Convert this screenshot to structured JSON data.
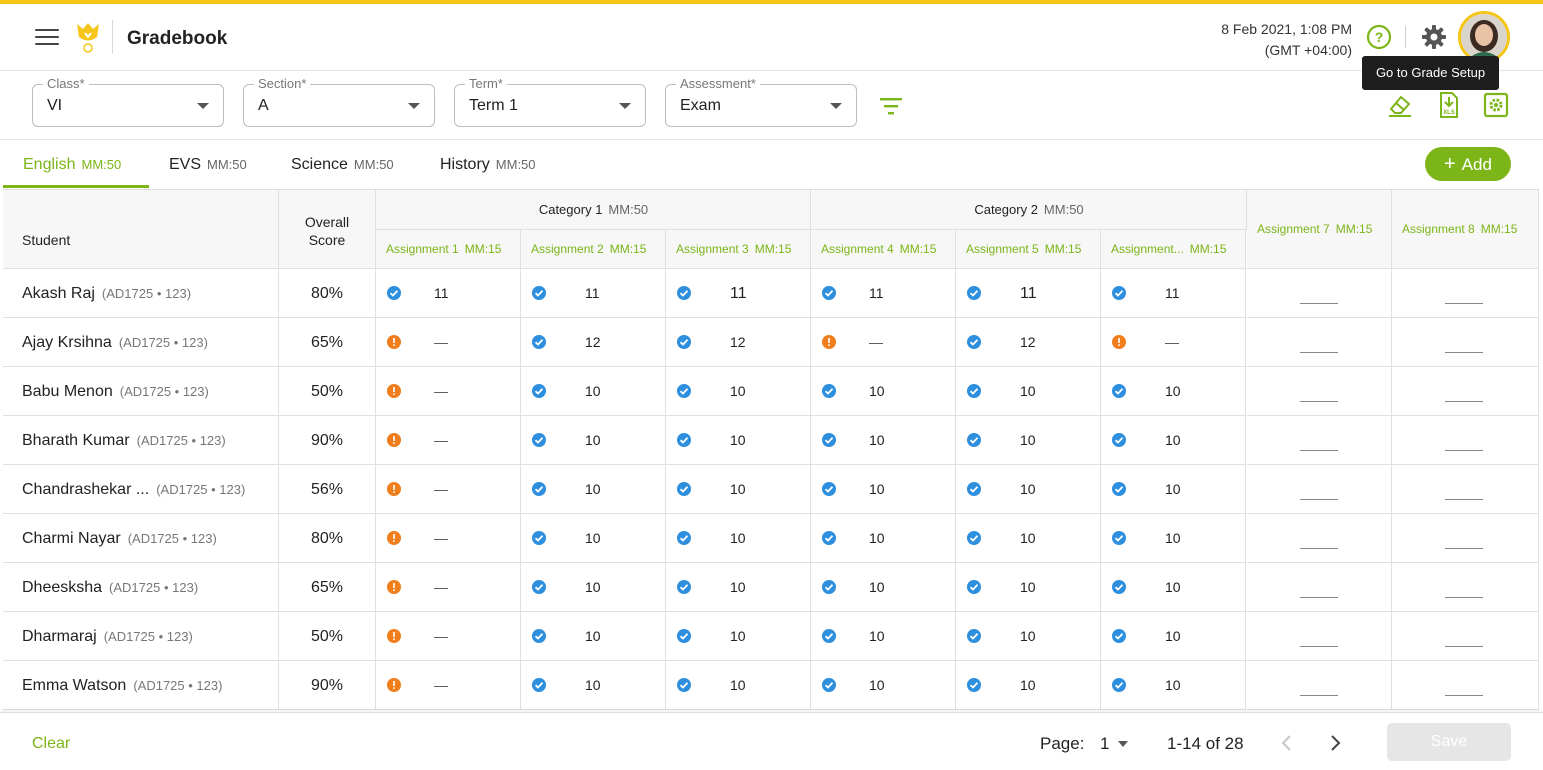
{
  "header": {
    "title": "Gradebook",
    "date": "8 Feb 2021, 1:08 PM",
    "timezone": "(GMT +04:00)",
    "tooltip": "Go to Grade Setup"
  },
  "filters": {
    "class": {
      "label": "Class*",
      "value": "VI"
    },
    "section": {
      "label": "Section*",
      "value": "A"
    },
    "term": {
      "label": "Term*",
      "value": "Term 1"
    },
    "assessment": {
      "label": "Assessment*",
      "value": "Exam"
    }
  },
  "tabs": [
    {
      "label": "English",
      "mm": "MM:50"
    },
    {
      "label": "EVS",
      "mm": "MM:50"
    },
    {
      "label": "Science",
      "mm": "MM:50"
    },
    {
      "label": "History",
      "mm": "MM:50"
    }
  ],
  "add_label": "Add",
  "table": {
    "student_header": "Student",
    "overall_header_1": "Overall",
    "overall_header_2": "Score",
    "categories": [
      {
        "label": "Category 1",
        "mm": "MM:50"
      },
      {
        "label": "Category 2",
        "mm": "MM:50"
      }
    ],
    "assignments": [
      {
        "label": "Assignment 1",
        "mm": "MM:15"
      },
      {
        "label": "Assignment 2",
        "mm": "MM:15"
      },
      {
        "label": "Assignment 3",
        "mm": "MM:15"
      },
      {
        "label": "Assignment 4",
        "mm": "MM:15"
      },
      {
        "label": "Assignment 5",
        "mm": "MM:15"
      },
      {
        "label": "Assignment...",
        "mm": "MM:15"
      },
      {
        "label": "Assignment 7",
        "mm": "MM:15"
      },
      {
        "label": "Assignment 8",
        "mm": "MM:15"
      }
    ],
    "rows": [
      {
        "name": "Akash Raj",
        "id": "(AD1725 • 123)",
        "score": "80%",
        "marks": [
          [
            "ok",
            "11"
          ],
          [
            "ok",
            "11"
          ],
          [
            "ok",
            "11"
          ],
          [
            "ok",
            "11"
          ],
          [
            "ok",
            "11"
          ],
          [
            "ok",
            "11"
          ]
        ]
      },
      {
        "name": "Ajay Krsihna",
        "id": "(AD1725 • 123)",
        "score": "65%",
        "marks": [
          [
            "warn",
            "—"
          ],
          [
            "ok",
            "12"
          ],
          [
            "ok",
            "12"
          ],
          [
            "warn",
            "—"
          ],
          [
            "ok",
            "12"
          ],
          [
            "warn",
            "—"
          ]
        ]
      },
      {
        "name": "Babu Menon",
        "id": "(AD1725 • 123)",
        "score": "50%",
        "marks": [
          [
            "warn",
            "—"
          ],
          [
            "ok",
            "10"
          ],
          [
            "ok",
            "10"
          ],
          [
            "ok",
            "10"
          ],
          [
            "ok",
            "10"
          ],
          [
            "ok",
            "10"
          ]
        ]
      },
      {
        "name": "Bharath Kumar",
        "id": "(AD1725 • 123)",
        "score": "90%",
        "marks": [
          [
            "warn",
            "—"
          ],
          [
            "ok",
            "10"
          ],
          [
            "ok",
            "10"
          ],
          [
            "ok",
            "10"
          ],
          [
            "ok",
            "10"
          ],
          [
            "ok",
            "10"
          ]
        ]
      },
      {
        "name": "Chandrashekar ...",
        "id": "(AD1725 • 123)",
        "score": "56%",
        "marks": [
          [
            "warn",
            "—"
          ],
          [
            "ok",
            "10"
          ],
          [
            "ok",
            "10"
          ],
          [
            "ok",
            "10"
          ],
          [
            "ok",
            "10"
          ],
          [
            "ok",
            "10"
          ]
        ]
      },
      {
        "name": "Charmi Nayar",
        "id": "(AD1725 • 123)",
        "score": "80%",
        "marks": [
          [
            "warn",
            "—"
          ],
          [
            "ok",
            "10"
          ],
          [
            "ok",
            "10"
          ],
          [
            "ok",
            "10"
          ],
          [
            "ok",
            "10"
          ],
          [
            "ok",
            "10"
          ]
        ]
      },
      {
        "name": "Dheesksha",
        "id": "(AD1725 • 123)",
        "score": "65%",
        "marks": [
          [
            "warn",
            "—"
          ],
          [
            "ok",
            "10"
          ],
          [
            "ok",
            "10"
          ],
          [
            "ok",
            "10"
          ],
          [
            "ok",
            "10"
          ],
          [
            "ok",
            "10"
          ]
        ]
      },
      {
        "name": "Dharmaraj",
        "id": "(AD1725 • 123)",
        "score": "50%",
        "marks": [
          [
            "warn",
            "—"
          ],
          [
            "ok",
            "10"
          ],
          [
            "ok",
            "10"
          ],
          [
            "ok",
            "10"
          ],
          [
            "ok",
            "10"
          ],
          [
            "ok",
            "10"
          ]
        ]
      },
      {
        "name": "Emma Watson",
        "id": "(AD1725 • 123)",
        "score": "90%",
        "marks": [
          [
            "warn",
            "—"
          ],
          [
            "ok",
            "10"
          ],
          [
            "ok",
            "10"
          ],
          [
            "ok",
            "10"
          ],
          [
            "ok",
            "10"
          ],
          [
            "ok",
            "10"
          ]
        ]
      }
    ]
  },
  "footer": {
    "clear": "Clear",
    "page_label": "Page:",
    "page_value": "1",
    "range": "1-14 of 28",
    "save": "Save"
  },
  "colors": {
    "accent": "#7cb518",
    "brand_yellow": "#f5c518",
    "ok": "#2e8fde",
    "warn": "#f07e1c"
  }
}
